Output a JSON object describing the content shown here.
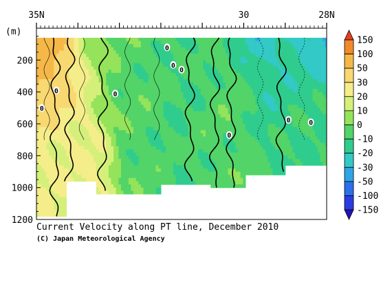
{
  "chart_data": {
    "type": "heatmap",
    "title": "Current Velocity along PT line, December 2010",
    "credit": "(C) Japan Meteorological Agency",
    "xlabel": "",
    "ylabel": "(m)",
    "x_axis": {
      "range": [
        35,
        28
      ],
      "unit": "N",
      "tick_labels": [
        {
          "value": 35,
          "label": "35N"
        },
        {
          "value": 30,
          "label": "30"
        },
        {
          "value": 28,
          "label": "28N"
        }
      ]
    },
    "y_axis": {
      "range": [
        0,
        1200
      ],
      "inverted": true,
      "unit_label": "(m)",
      "tick_labels": [
        {
          "value": 200,
          "label": "200"
        },
        {
          "value": 400,
          "label": "400"
        },
        {
          "value": 600,
          "label": "600"
        },
        {
          "value": 800,
          "label": "800"
        },
        {
          "value": 1000,
          "label": "1000"
        },
        {
          "value": 1200,
          "label": "1200"
        }
      ]
    },
    "colorbar": {
      "levels": [
        "150",
        "100",
        "50",
        "30",
        "20",
        "10",
        "0",
        "-10",
        "-20",
        "-30",
        "-50",
        "-100",
        "-150"
      ],
      "colors": [
        "#e8401e",
        "#f08a2a",
        "#f5b848",
        "#f8d870",
        "#f5ed8a",
        "#d4f07a",
        "#94e35a",
        "#52d468",
        "#2fcc8e",
        "#33c9c7",
        "#2ea6e6",
        "#2a70e8",
        "#2a3ce0",
        "#2414b8"
      ]
    },
    "contour_labels": [
      "0",
      "0",
      "0",
      "0",
      "0",
      "0",
      "0",
      "0",
      "0"
    ],
    "series": [
      {
        "values": [
          {
            "lat": 35.0,
            "depth": 100,
            "v": 70
          },
          {
            "lat": 34.8,
            "depth": 150,
            "v": 80
          },
          {
            "lat": 34.6,
            "depth": 300,
            "v": 45
          },
          {
            "lat": 34.4,
            "depth": 500,
            "v": 20
          },
          {
            "lat": 34.0,
            "depth": 200,
            "v": 15
          },
          {
            "lat": 33.5,
            "depth": 150,
            "v": -5
          },
          {
            "lat": 32.5,
            "depth": 300,
            "v": -5
          },
          {
            "lat": 31.5,
            "depth": 300,
            "v": -10
          },
          {
            "lat": 30.5,
            "depth": 400,
            "v": -5
          },
          {
            "lat": 29.5,
            "depth": 100,
            "v": -25
          },
          {
            "lat": 29.0,
            "depth": 300,
            "v": -15
          },
          {
            "lat": 28.5,
            "depth": 500,
            "v": -10
          },
          {
            "lat": 28.2,
            "depth": 100,
            "v": -30
          }
        ]
      }
    ],
    "grid": false
  }
}
